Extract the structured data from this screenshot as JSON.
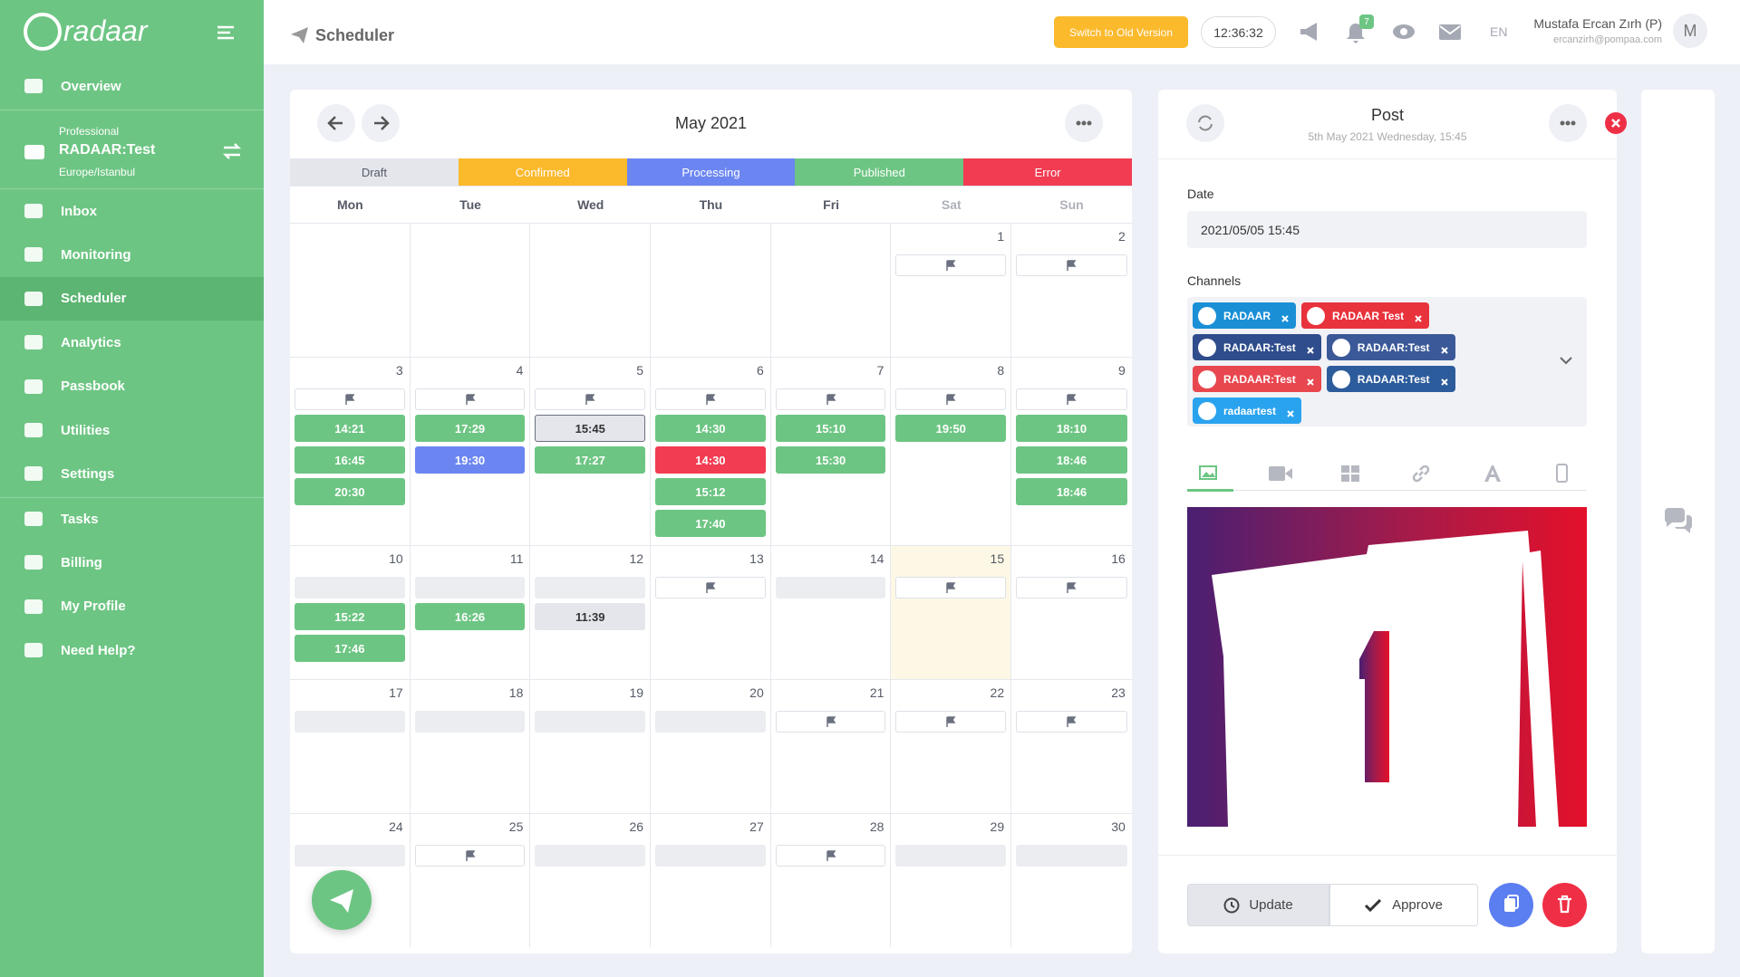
{
  "sidebar": {
    "logo": "radaar",
    "menu_top": [
      "Overview"
    ],
    "account": {
      "plan": "Professional",
      "name": "RADAAR:Test",
      "timezone": "Europe/Istanbul"
    },
    "menu": [
      "Inbox",
      "Monitoring",
      "Scheduler",
      "Analytics",
      "Passbook",
      "Utilities",
      "Settings"
    ],
    "active_index": 2,
    "menu_bottom": [
      "Tasks",
      "Billing",
      "My Profile",
      "Need Help?"
    ]
  },
  "header": {
    "page_title": "Scheduler",
    "old_version_button": "Switch to Old Version",
    "clock": "12:36:32",
    "notification_count": 7,
    "language": "EN",
    "user_name": "Mustafa Ercan Zırh (P)",
    "user_email": "ercanzirh@pompaa.com",
    "avatar": "M"
  },
  "calendar": {
    "title": "May 2021",
    "statuses": [
      {
        "label": "Draft",
        "color": "#e4e6ec",
        "text": "#555a66"
      },
      {
        "label": "Confirmed",
        "color": "#fbb92c",
        "text": "#ffffff"
      },
      {
        "label": "Processing",
        "color": "#6b86f1",
        "text": "#ffffff"
      },
      {
        "label": "Published",
        "color": "#6dc583",
        "text": "#ffffff"
      },
      {
        "label": "Error",
        "color": "#f23c52",
        "text": "#ffffff"
      }
    ],
    "weekdays": [
      "Mon",
      "Tue",
      "Wed",
      "Thu",
      "Fri",
      "Sat",
      "Sun"
    ],
    "weeks": [
      [
        {
          "day": null
        },
        {
          "day": null
        },
        {
          "day": null
        },
        {
          "day": null
        },
        {
          "day": null
        },
        {
          "day": 1,
          "slot": "flag",
          "events": []
        },
        {
          "day": 2,
          "slot": "flag",
          "events": []
        }
      ],
      [
        {
          "day": 3,
          "slot": "flag",
          "events": [
            {
              "time": "14:21",
              "status": 3
            },
            {
              "time": "16:45",
              "status": 3
            },
            {
              "time": "20:30",
              "status": 3
            }
          ]
        },
        {
          "day": 4,
          "slot": "flag",
          "events": [
            {
              "time": "17:29",
              "status": 3
            },
            {
              "time": "19:30",
              "status": 2
            }
          ]
        },
        {
          "day": 5,
          "slot": "flag",
          "events": [
            {
              "time": "15:45",
              "status": 0,
              "selected": true
            },
            {
              "time": "17:27",
              "status": 3
            }
          ]
        },
        {
          "day": 6,
          "slot": "flag",
          "events": [
            {
              "time": "14:30",
              "status": 3
            },
            {
              "time": "14:30",
              "status": 4
            },
            {
              "time": "15:12",
              "status": 3
            },
            {
              "time": "17:40",
              "status": 3
            }
          ]
        },
        {
          "day": 7,
          "slot": "flag",
          "events": [
            {
              "time": "15:10",
              "status": 3
            },
            {
              "time": "15:30",
              "status": 3
            }
          ]
        },
        {
          "day": 8,
          "slot": "flag",
          "events": [
            {
              "time": "19:50",
              "status": 3
            }
          ]
        },
        {
          "day": 9,
          "slot": "flag",
          "events": [
            {
              "time": "18:10",
              "status": 3
            },
            {
              "time": "18:46",
              "status": 3
            },
            {
              "time": "18:46",
              "status": 3
            }
          ]
        }
      ],
      [
        {
          "day": 10,
          "slot": "empty",
          "events": [
            {
              "time": "15:22",
              "status": 3
            },
            {
              "time": "17:46",
              "status": 3
            }
          ]
        },
        {
          "day": 11,
          "slot": "empty",
          "events": [
            {
              "time": "16:26",
              "status": 3
            }
          ]
        },
        {
          "day": 12,
          "slot": "empty",
          "events": [
            {
              "time": "11:39",
              "status": 0
            }
          ]
        },
        {
          "day": 13,
          "slot": "flag",
          "events": []
        },
        {
          "day": 14,
          "slot": "empty",
          "events": []
        },
        {
          "day": 15,
          "slot": "flag",
          "today": true,
          "events": []
        },
        {
          "day": 16,
          "slot": "flag",
          "events": []
        }
      ],
      [
        {
          "day": 17,
          "slot": "empty",
          "events": []
        },
        {
          "day": 18,
          "slot": "empty",
          "events": []
        },
        {
          "day": 19,
          "slot": "empty",
          "events": []
        },
        {
          "day": 20,
          "slot": "empty",
          "events": []
        },
        {
          "day": 21,
          "slot": "flag",
          "events": []
        },
        {
          "day": 22,
          "slot": "flag",
          "events": []
        },
        {
          "day": 23,
          "slot": "flag",
          "events": []
        }
      ],
      [
        {
          "day": 24,
          "slot": "empty",
          "events": []
        },
        {
          "day": 25,
          "slot": "flag",
          "events": []
        },
        {
          "day": 26,
          "slot": "empty",
          "events": []
        },
        {
          "day": 27,
          "slot": "empty",
          "events": []
        },
        {
          "day": 28,
          "slot": "flag",
          "events": []
        },
        {
          "day": 29,
          "slot": "empty",
          "events": []
        },
        {
          "day": 30,
          "slot": "empty",
          "events": []
        }
      ]
    ]
  },
  "post": {
    "title": "Post",
    "subtitle": "5th May 2021 Wednesday, 15:45",
    "date_label": "Date",
    "date_value": "2021/05/05 15:45",
    "channels_label": "Channels",
    "channels": [
      [
        {
          "name": "RADAAR",
          "color": "#1a8fd6"
        },
        {
          "name": "RADAAR Test",
          "color": "#e8323c"
        }
      ],
      [
        {
          "name": "RADAAR:Test",
          "color": "#2f4d8c"
        },
        {
          "name": "RADAAR:Test",
          "color": "#3b5998"
        }
      ],
      [
        {
          "name": "RADAAR:Test",
          "color": "#e8474f"
        },
        {
          "name": "RADAAR:Test",
          "color": "#2d5c9c"
        }
      ],
      [
        {
          "name": "radaartest",
          "color": "#2aa3ef"
        }
      ]
    ],
    "update_button": "Update",
    "approve_button": "Approve"
  }
}
